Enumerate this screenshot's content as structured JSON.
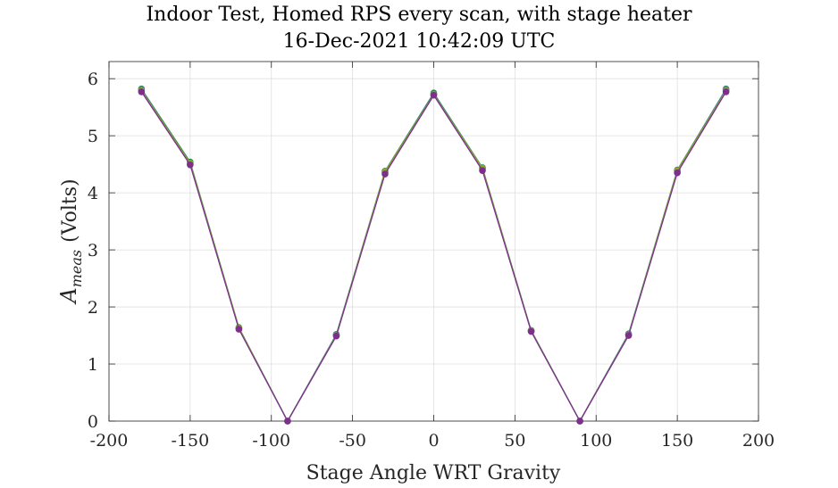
{
  "chart_data": {
    "type": "line",
    "title": "Indoor Test, Homed RPS every scan, with stage heater",
    "subtitle": "16-Dec-2021 10:42:09 UTC",
    "xlabel": "Stage Angle WRT Gravity",
    "ylabel_main": "A",
    "ylabel_sub": "meas",
    "ylabel_unit": "(Volts)",
    "xlim": [
      -200,
      200
    ],
    "ylim": [
      0,
      6.3
    ],
    "xticks": [
      -200,
      -150,
      -100,
      -50,
      0,
      50,
      100,
      150,
      200
    ],
    "xtick_labels": [
      "-200",
      "-150",
      "-100",
      "-50",
      "0",
      "50",
      "100",
      "150",
      "200"
    ],
    "yticks": [
      0,
      1,
      2,
      3,
      4,
      5,
      6
    ],
    "ytick_labels": [
      "0",
      "1",
      "2",
      "3",
      "4",
      "5",
      "6"
    ],
    "grid": true,
    "x": [
      -180,
      -150,
      -120,
      -90,
      -60,
      -30,
      0,
      30,
      60,
      90,
      120,
      150,
      180
    ],
    "series": [
      {
        "color": "#2e8b57",
        "values": [
          5.82,
          4.54,
          1.64,
          0.0,
          1.52,
          4.38,
          5.75,
          4.44,
          1.59,
          0.0,
          1.53,
          4.4,
          5.82
        ]
      },
      {
        "color": "#4f7fbf",
        "values": [
          5.8,
          4.51,
          1.62,
          0.0,
          1.51,
          4.36,
          5.73,
          4.42,
          1.58,
          0.0,
          1.52,
          4.38,
          5.81
        ]
      },
      {
        "color": "#8aa52e",
        "values": [
          5.79,
          4.52,
          1.63,
          0.0,
          1.5,
          4.37,
          5.72,
          4.43,
          1.58,
          0.0,
          1.51,
          4.39,
          5.79
        ]
      },
      {
        "color": "#7e2f8e",
        "values": [
          5.77,
          4.49,
          1.61,
          0.0,
          1.49,
          4.33,
          5.71,
          4.39,
          1.57,
          0.0,
          1.5,
          4.35,
          5.77
        ]
      }
    ]
  }
}
